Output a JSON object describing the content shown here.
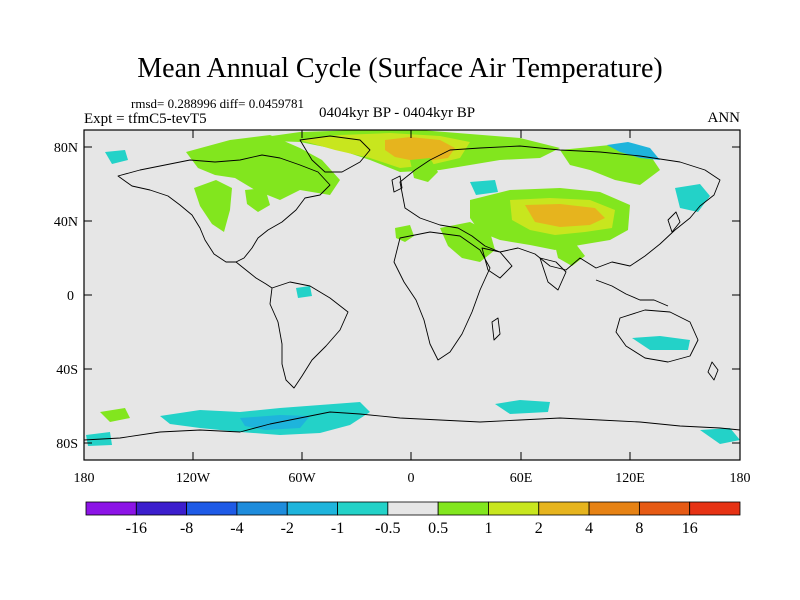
{
  "title": "Mean Annual Cycle (Surface Air Temperature)",
  "stats": "rmsd= 0.288996 diff= 0.0459781",
  "experiment": "Expt = tfmC5-tevT5",
  "center_label": "0404kyr BP - 0404kyr BP",
  "season": "ANN",
  "lat_ticks": [
    "80N",
    "40N",
    "0",
    "40S",
    "80S"
  ],
  "lon_ticks": [
    "180",
    "120W",
    "60W",
    "0",
    "60E",
    "120E",
    "180"
  ],
  "colorbar": {
    "labels": [
      "-16",
      "-8",
      "-4",
      "-2",
      "-1",
      "-0.5",
      "0.5",
      "1",
      "2",
      "4",
      "8",
      "16"
    ],
    "colors": [
      "#8c14e6",
      "#3c1ecd",
      "#1e5ae6",
      "#1e8cdc",
      "#1eb4dc",
      "#23d2c8",
      "#e6e6e6",
      "#82e61e",
      "#c8e61e",
      "#e6b41e",
      "#e68214",
      "#e65a14",
      "#e63214"
    ]
  },
  "colors": {
    "ocean_background": "#e6e6e6",
    "coast": "#000000",
    "warm_green": "#82e61e",
    "warm_yellow": "#c8e61e",
    "warm_orange": "#e6b41e",
    "cool_cyan": "#23d2c8",
    "cool_lightblue": "#1eb4dc"
  }
}
